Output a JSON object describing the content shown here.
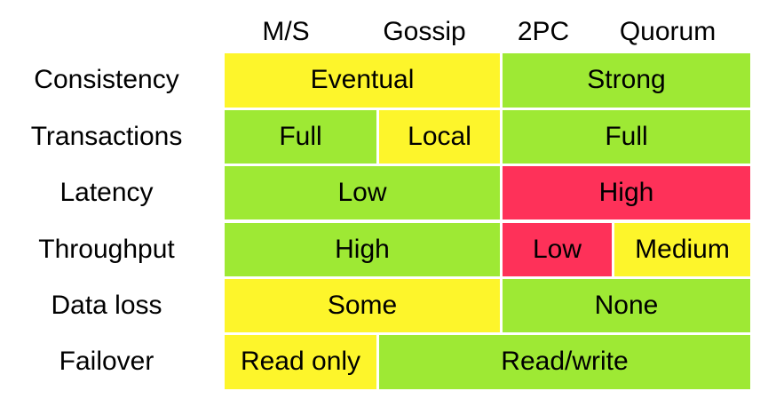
{
  "columns": [
    "M/S",
    "Gossip",
    "2PC",
    "Quorum"
  ],
  "colors": {
    "yellow": "#fdf52b",
    "green": "#9ee934",
    "red": "#fe3159"
  },
  "rows": [
    {
      "label": "Consistency",
      "cells": [
        {
          "text": "Eventual",
          "span": [
            0,
            1
          ],
          "color": "yellow"
        },
        {
          "text": "Strong",
          "span": [
            2,
            3
          ],
          "color": "green"
        }
      ]
    },
    {
      "label": "Transactions",
      "cells": [
        {
          "text": "Full",
          "span": [
            0,
            0
          ],
          "color": "green"
        },
        {
          "text": "Local",
          "span": [
            1,
            1
          ],
          "color": "yellow"
        },
        {
          "text": "Full",
          "span": [
            2,
            3
          ],
          "color": "green"
        }
      ]
    },
    {
      "label": "Latency",
      "cells": [
        {
          "text": "Low",
          "span": [
            0,
            1
          ],
          "color": "green"
        },
        {
          "text": "High",
          "span": [
            2,
            3
          ],
          "color": "red"
        }
      ]
    },
    {
      "label": "Throughput",
      "cells": [
        {
          "text": "High",
          "span": [
            0,
            1
          ],
          "color": "green"
        },
        {
          "text": "Low",
          "span": [
            2,
            2
          ],
          "color": "red"
        },
        {
          "text": "Medium",
          "span": [
            3,
            3
          ],
          "color": "yellow"
        }
      ]
    },
    {
      "label": "Data loss",
      "cells": [
        {
          "text": "Some",
          "span": [
            0,
            1
          ],
          "color": "yellow"
        },
        {
          "text": "None",
          "span": [
            2,
            3
          ],
          "color": "green"
        }
      ]
    },
    {
      "label": "Failover",
      "cells": [
        {
          "text": "Read only",
          "span": [
            0,
            0
          ],
          "color": "yellow"
        },
        {
          "text": "Read/write",
          "span": [
            1,
            3
          ],
          "color": "green"
        }
      ]
    }
  ]
}
